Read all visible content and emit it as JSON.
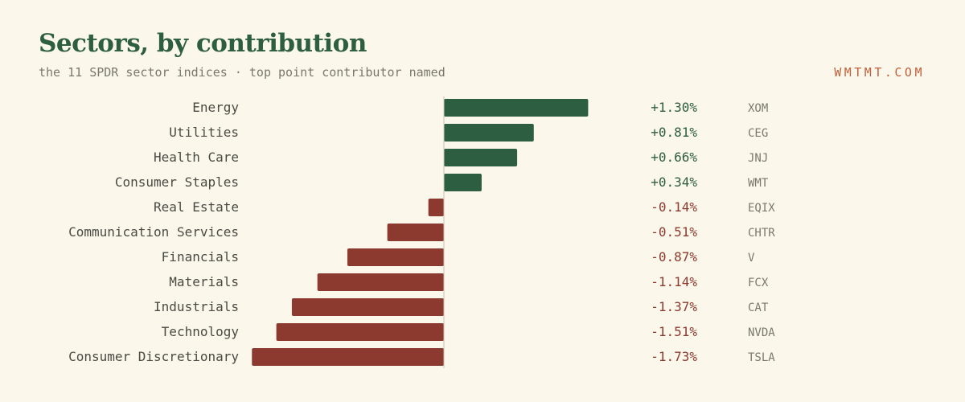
{
  "header": {
    "title": "Sectors, by contribution",
    "subtitle": "the 11 SPDR sector indices · top point contributor named",
    "site": "WMTMT.COM"
  },
  "colors": {
    "background": "#fbf7ea",
    "positive": "#2e5e41",
    "negative": "#8c3a2f",
    "title": "#2e5e41",
    "text": "#4a4a44",
    "muted": "#7a786e",
    "accent": "#c0603c",
    "axis": "#c9c4b4"
  },
  "chart_data": {
    "type": "bar",
    "orientation": "horizontal",
    "categories": [
      "Energy",
      "Utilities",
      "Health Care",
      "Consumer Staples",
      "Real Estate",
      "Communication Services",
      "Financials",
      "Materials",
      "Industrials",
      "Technology",
      "Consumer Discretionary"
    ],
    "values": [
      1.3,
      0.81,
      0.66,
      0.34,
      -0.14,
      -0.51,
      -0.87,
      -1.14,
      -1.37,
      -1.51,
      -1.73
    ],
    "value_labels": [
      "+1.30%",
      "+0.81%",
      "+0.66%",
      "+0.34%",
      "-0.14%",
      "-0.51%",
      "-0.87%",
      "-1.14%",
      "-1.37%",
      "-1.51%",
      "-1.73%"
    ],
    "top_contributors": [
      "XOM",
      "CEG",
      "JNJ",
      "WMT",
      "EQIX",
      "CHTR",
      "V",
      "FCX",
      "CAT",
      "NVDA",
      "TSLA"
    ],
    "xlim": [
      -1.73,
      1.3
    ],
    "unit": "%",
    "grid": false,
    "legend": "none"
  }
}
